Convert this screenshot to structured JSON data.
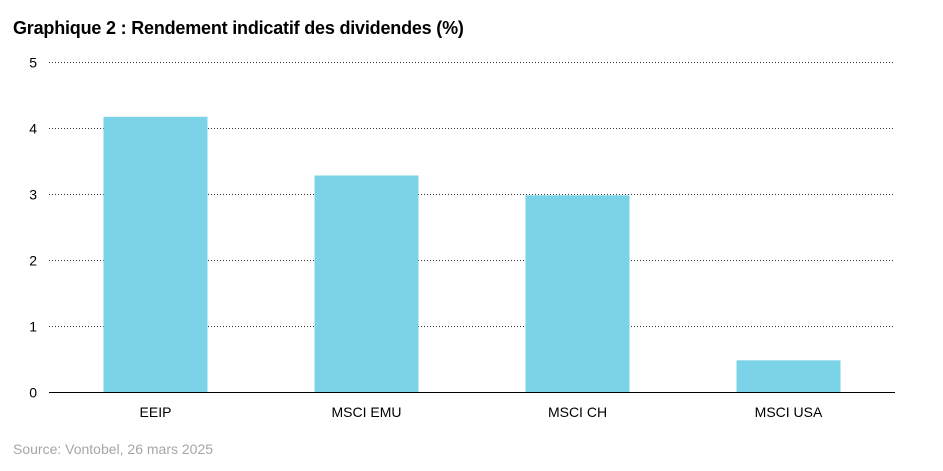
{
  "chart_data": {
    "type": "bar",
    "title": "Graphique 2 : Rendement indicatif des dividendes (%)",
    "categories": [
      "EEIP",
      "MSCI EMU",
      "MSCI CH",
      "MSCI USA"
    ],
    "values": [
      4.17,
      3.28,
      2.98,
      0.48
    ],
    "ylim": [
      0,
      5
    ],
    "yticks": [
      "0",
      "1",
      "2",
      "3",
      "4",
      "5"
    ],
    "xlabel": "",
    "ylabel": "",
    "grid": true,
    "bar_color": "#7ad3e6",
    "source": "Source: Vontobel, 26 mars 2025"
  }
}
